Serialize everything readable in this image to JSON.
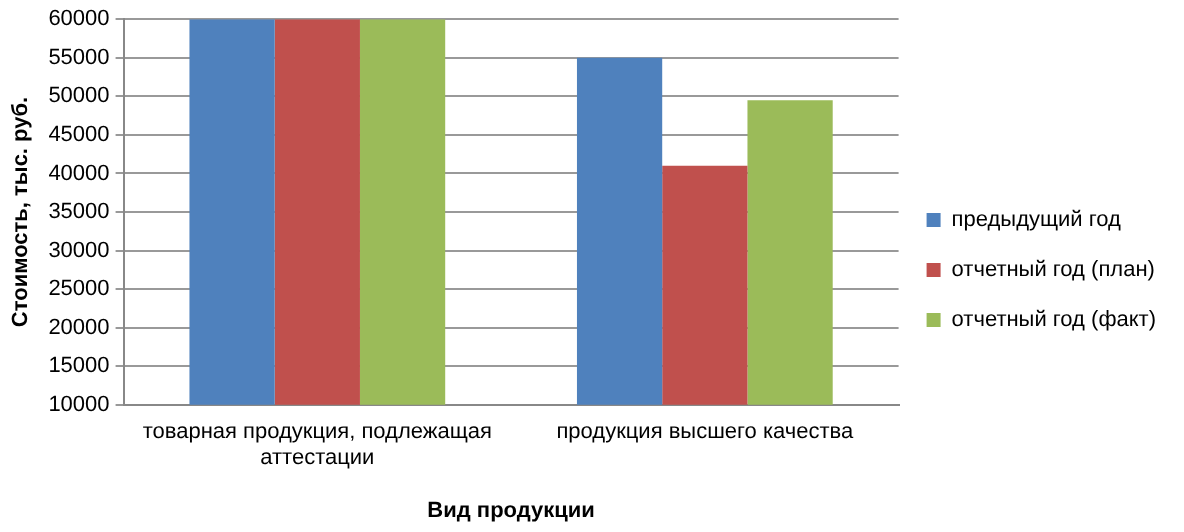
{
  "chart_data": {
    "type": "bar",
    "xlabel": "Вид продукции",
    "ylabel": "Стоимость, тыс. руб.",
    "categories": [
      "товарная продукция, подлежащая аттестации",
      "продукция высшего качества"
    ],
    "series": [
      {
        "name": "предыдущий год",
        "color": "#4f81bd",
        "values": [
          60000,
          55000
        ]
      },
      {
        "name": "отчетный год (план)",
        "color": "#c0504d",
        "values": [
          60000,
          41000
        ]
      },
      {
        "name": "отчетный год (факт)",
        "color": "#9bbb59",
        "values": [
          60000,
          49500
        ]
      }
    ],
    "ylim": [
      10000,
      60000
    ],
    "yticks": [
      10000,
      15000,
      20000,
      25000,
      30000,
      35000,
      40000,
      45000,
      50000,
      55000,
      60000
    ],
    "grid": "y",
    "legend": "right"
  }
}
